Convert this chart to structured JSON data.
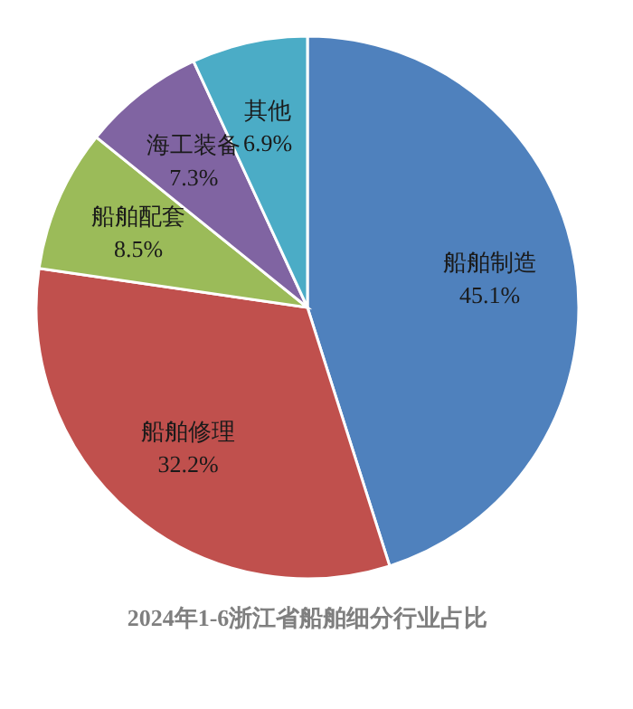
{
  "chart_data": {
    "type": "pie",
    "title": "2024年1-6浙江省船舶细分行业占比",
    "categories": [
      "船舶制造",
      "船舶修理",
      "船舶配套",
      "海工装备",
      "其他"
    ],
    "values": [
      45.1,
      32.2,
      8.5,
      7.3,
      6.9
    ],
    "value_labels": [
      "45.1%",
      "32.2%",
      "8.5%",
      "7.3%",
      "6.9%"
    ],
    "colors": [
      "#4f81bd",
      "#c0504d",
      "#9bbb59",
      "#8064a2",
      "#4bacc6"
    ],
    "legend": false
  }
}
